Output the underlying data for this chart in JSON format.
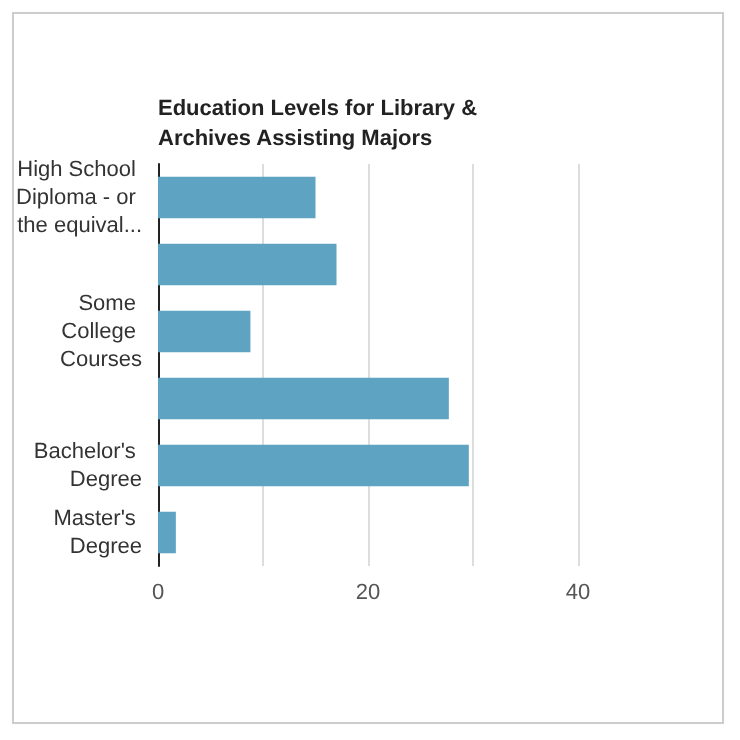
{
  "chart_data": {
    "type": "bar",
    "orientation": "horizontal",
    "title": "Education Levels for Library & Archives Assisting Majors",
    "categories": [
      "High School Diploma - or the equival...",
      null,
      "Some College Courses",
      null,
      "Bachelor's Degree",
      "Master's Degree"
    ],
    "values": [
      15,
      17,
      8.8,
      27.7,
      29.6,
      1.7
    ],
    "color": "#5ea3c1",
    "xlim": [
      0,
      40
    ],
    "xticks": [
      0,
      {
        "value": 10,
        "label": null
      },
      20,
      {
        "value": 30,
        "label": null
      },
      40
    ],
    "grid": "x"
  }
}
